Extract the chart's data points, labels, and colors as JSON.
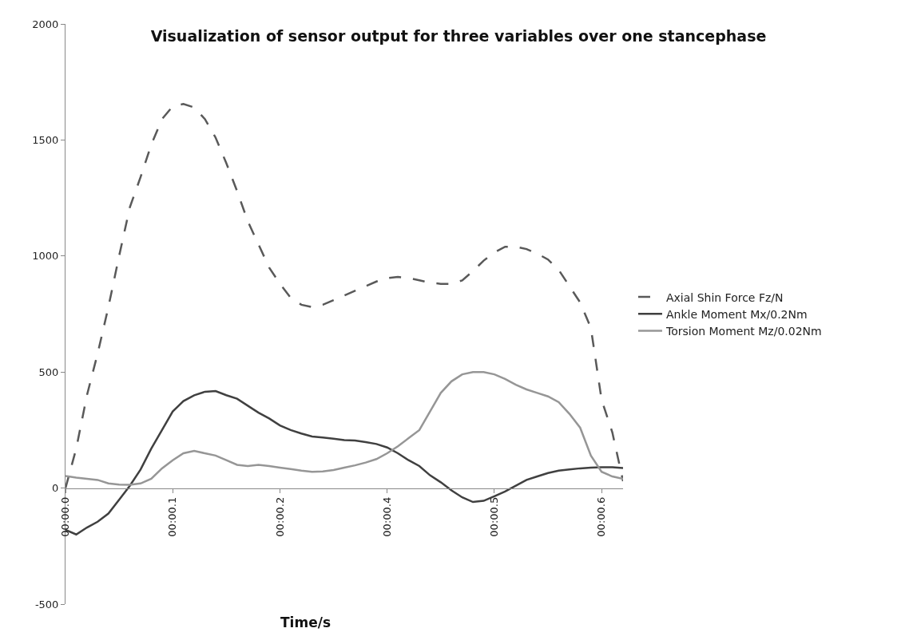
{
  "chart_data": {
    "type": "line",
    "title": "Visualization of sensor output for three variables over one stancephase",
    "xlabel": "Time/s",
    "categories": [
      "00:00.0",
      null,
      null,
      null,
      null,
      null,
      null,
      null,
      null,
      null,
      "00:00.1",
      null,
      null,
      null,
      null,
      null,
      null,
      null,
      null,
      null,
      "00:00.2",
      null,
      null,
      null,
      null,
      null,
      null,
      null,
      null,
      null,
      "00:00.4",
      null,
      null,
      null,
      null,
      null,
      null,
      null,
      null,
      null,
      "00:00.5",
      null,
      null,
      null,
      null,
      null,
      null,
      null,
      null,
      null,
      "00:00.6",
      null,
      null
    ],
    "ylim": [
      -500,
      2000
    ],
    "yticks": [
      -500,
      0,
      500,
      1000,
      1500,
      2000
    ],
    "grid": false,
    "legend": "right",
    "marker": "none",
    "series": [
      {
        "name": "Axial Shin Force Fz/N",
        "color": "#595959",
        "line_style": "dashed",
        "values": [
          0,
          170,
          400,
          580,
          780,
          1000,
          1210,
          1340,
          1480,
          1590,
          1645,
          1655,
          1640,
          1590,
          1510,
          1400,
          1280,
          1150,
          1050,
          950,
          880,
          820,
          790,
          780,
          790,
          810,
          830,
          850,
          870,
          890,
          905,
          910,
          905,
          895,
          885,
          880,
          880,
          895,
          935,
          980,
          1015,
          1040,
          1040,
          1030,
          1010,
          985,
          940,
          870,
          800,
          690,
          380,
          240,
          30
        ]
      },
      {
        "name": "Ankle Moment Mx/0.2Nm",
        "color": "#404040",
        "line_style": "solid",
        "values": [
          -180,
          -200,
          -170,
          -145,
          -110,
          -50,
          10,
          80,
          170,
          250,
          330,
          375,
          400,
          415,
          418,
          400,
          385,
          355,
          325,
          300,
          270,
          250,
          235,
          222,
          218,
          213,
          207,
          205,
          198,
          190,
          175,
          150,
          120,
          95,
          55,
          25,
          -10,
          -40,
          -60,
          -55,
          -35,
          -15,
          10,
          35,
          50,
          65,
          75,
          80,
          85,
          88,
          90,
          90,
          86
        ]
      },
      {
        "name": "Torsion Moment Mz/0.02Nm",
        "color": "#969696",
        "line_style": "solid",
        "values": [
          52,
          45,
          40,
          35,
          20,
          15,
          14,
          20,
          40,
          85,
          120,
          150,
          160,
          150,
          140,
          120,
          100,
          95,
          100,
          95,
          88,
          82,
          75,
          70,
          72,
          78,
          88,
          98,
          110,
          125,
          150,
          180,
          215,
          250,
          330,
          410,
          460,
          490,
          500,
          500,
          490,
          470,
          445,
          425,
          410,
          395,
          370,
          320,
          260,
          140,
          70,
          50,
          40
        ]
      }
    ]
  }
}
